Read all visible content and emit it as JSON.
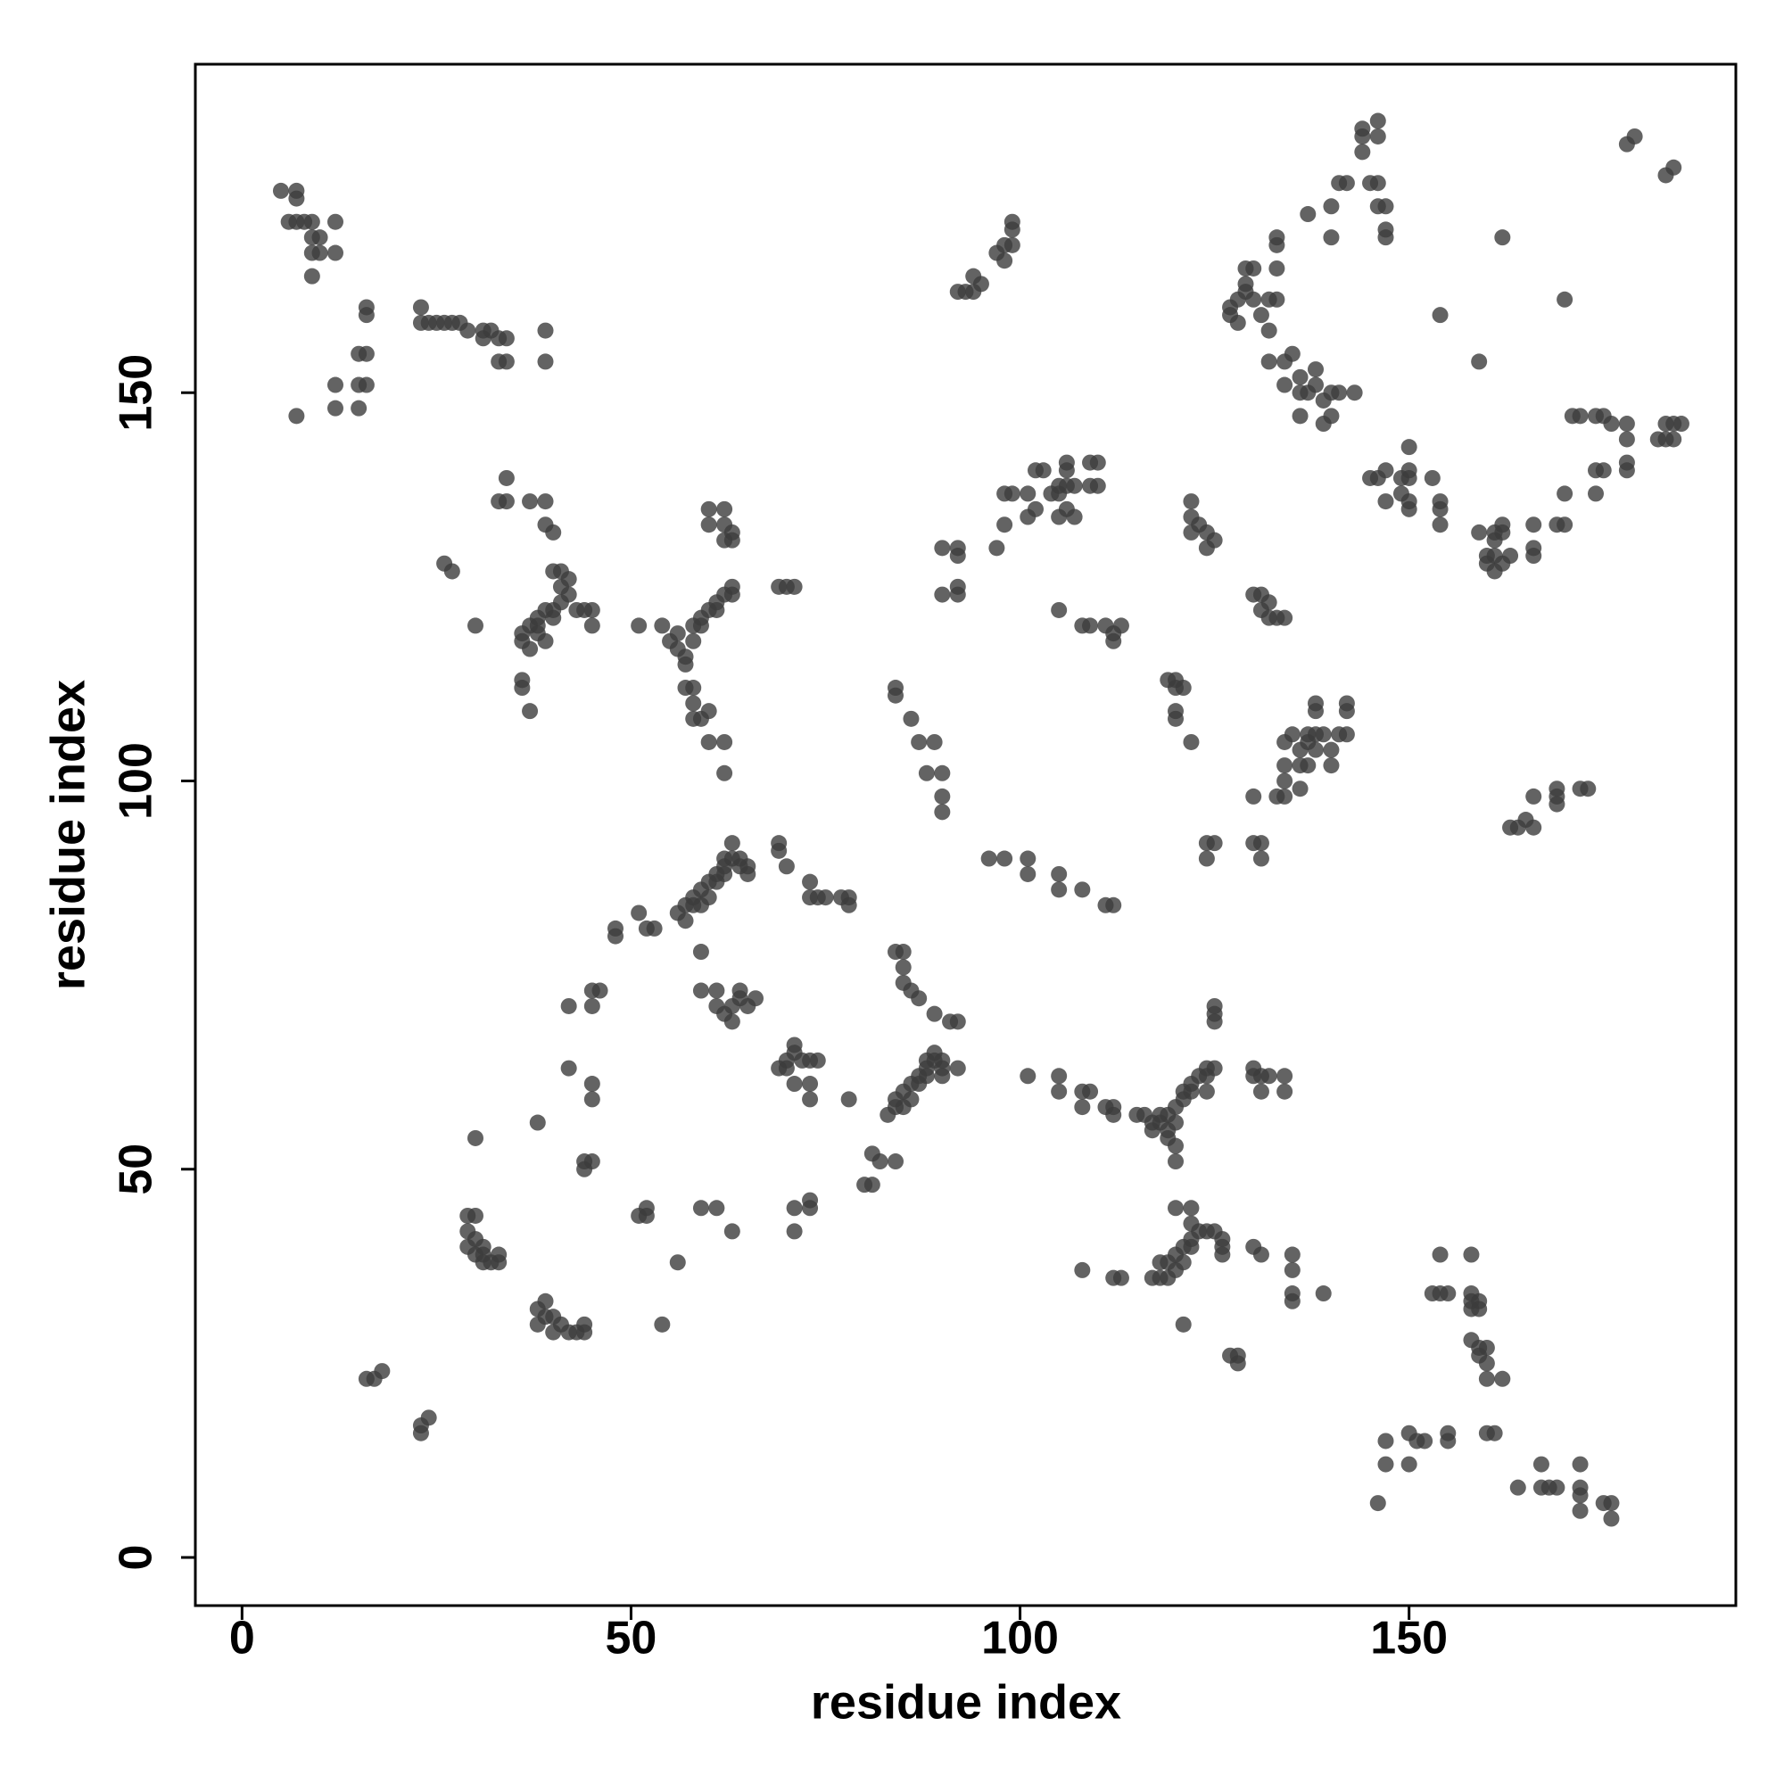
{
  "chart_data": {
    "type": "scatter",
    "xlabel": "residue index",
    "ylabel": "residue index",
    "color": "#3c3c3c",
    "xlim": [
      -6,
      192
    ],
    "ylim": [
      -6.2,
      192.3
    ],
    "xticks": [
      0,
      50,
      100,
      150
    ],
    "yticks": [
      0,
      50,
      100,
      150
    ],
    "x": [
      5,
      7,
      7,
      6,
      7,
      8,
      9,
      9,
      10,
      9,
      10,
      12,
      12,
      9,
      7,
      12,
      12,
      15,
      15,
      16,
      15,
      16,
      16,
      16,
      23,
      24,
      25,
      26,
      27,
      28,
      29,
      23,
      31,
      32,
      33,
      34,
      31,
      33,
      34,
      39,
      39,
      33,
      34,
      34,
      37,
      39,
      39,
      40,
      36,
      36,
      37,
      36,
      36,
      37,
      38,
      38,
      39,
      40,
      40,
      41,
      41,
      40,
      41,
      42,
      42,
      43,
      44,
      45,
      45,
      39,
      38,
      37,
      26,
      27,
      30,
      51,
      54,
      55,
      56,
      56,
      57,
      57,
      58,
      58,
      59,
      59,
      60,
      61,
      61,
      62,
      63,
      63,
      57,
      58,
      58,
      58,
      59,
      60,
      60,
      62,
      62,
      60,
      62,
      60,
      62,
      62,
      63,
      63,
      69,
      70,
      71,
      56,
      57,
      57,
      58,
      58,
      59,
      59,
      60,
      60,
      61,
      61,
      62,
      62,
      62,
      63,
      63,
      64,
      64,
      65,
      65,
      69,
      69,
      70,
      73,
      73,
      74,
      75,
      77,
      78,
      78,
      48,
      48,
      51,
      52,
      53,
      59,
      59,
      61,
      61,
      62,
      63,
      63,
      64,
      64,
      65,
      66,
      42,
      45,
      45,
      46,
      42,
      45,
      45,
      44,
      44,
      45,
      38,
      30,
      51,
      52,
      52,
      59,
      61,
      63,
      56,
      54,
      71,
      71,
      73,
      73,
      29,
      30,
      29,
      29,
      30,
      30,
      31,
      31,
      32,
      31,
      33,
      33,
      38,
      38,
      39,
      39,
      40,
      40,
      41,
      42,
      43,
      44,
      44,
      16,
      17,
      18,
      23,
      24,
      23,
      69,
      70,
      70,
      71,
      71,
      72,
      73,
      74,
      71,
      73,
      73,
      78,
      81,
      82,
      81,
      80,
      84,
      83,
      84,
      84,
      85,
      85,
      86,
      86,
      87,
      87,
      88,
      88,
      88,
      89,
      89,
      90,
      90,
      90,
      91,
      92,
      92,
      89,
      86,
      85,
      85,
      85,
      84,
      87,
      84,
      84,
      86,
      87,
      89,
      88,
      90,
      90,
      90,
      90,
      92,
      92,
      90,
      92,
      92,
      96,
      98,
      101,
      101,
      105,
      105,
      108,
      111,
      112,
      101,
      105,
      105,
      108,
      109,
      108,
      111,
      112,
      112,
      115,
      116,
      117,
      117,
      118,
      118,
      119,
      119,
      120,
      120,
      121,
      121,
      122,
      122,
      123,
      124,
      124,
      125,
      124,
      119,
      120,
      120,
      125,
      125,
      125,
      130,
      131,
      132,
      134,
      131,
      134,
      130,
      108,
      112,
      113,
      117,
      118,
      119,
      118,
      119,
      120,
      120,
      121,
      121,
      122,
      122,
      122,
      123,
      124,
      125,
      126,
      126,
      126,
      120,
      122,
      121,
      127,
      128,
      128,
      130,
      131,
      135,
      135,
      135,
      135,
      139,
      92,
      93,
      94,
      94,
      95,
      97,
      98,
      98,
      99,
      99,
      99,
      98,
      99,
      98,
      97,
      101,
      101,
      102,
      103,
      102,
      104,
      105,
      105,
      106,
      106,
      106,
      107,
      106,
      105,
      107,
      109,
      110,
      109,
      110,
      105,
      108,
      109,
      111,
      112,
      112,
      113,
      119,
      120,
      120,
      121,
      120,
      120,
      122,
      122,
      122,
      122,
      123,
      124,
      125,
      124,
      124,
      125,
      124,
      130,
      131,
      131,
      130,
      130,
      131,
      131,
      132,
      132,
      133,
      134,
      133,
      134,
      134,
      134,
      134,
      135,
      136,
      136,
      136,
      137,
      137,
      137,
      138,
      138,
      138,
      138,
      139,
      140,
      140,
      141,
      142,
      142,
      142,
      127,
      127,
      128,
      128,
      129,
      129,
      129,
      130,
      130,
      131,
      132,
      132,
      133,
      133,
      133,
      133,
      132,
      134,
      134,
      135,
      136,
      136,
      136,
      137,
      138,
      138,
      139,
      139,
      140,
      140,
      141,
      143,
      137,
      140,
      141,
      142,
      140,
      145,
      146,
      146,
      147,
      147,
      147,
      144,
      144,
      146,
      146,
      144,
      145,
      146,
      147,
      147,
      149,
      149,
      150,
      150,
      150,
      150,
      150,
      153,
      154,
      154,
      154,
      159,
      161,
      162,
      162,
      161,
      160,
      161,
      160,
      161,
      163,
      162,
      166,
      166,
      166,
      154,
      159,
      162,
      170,
      169,
      170,
      170,
      174,
      174,
      175,
      178,
      178,
      178,
      178,
      171,
      172,
      174,
      175,
      176,
      182,
      183,
      184,
      184,
      185,
      183,
      178,
      179,
      183,
      184,
      163,
      164,
      165,
      166,
      166,
      169,
      169,
      169,
      172,
      173,
      153,
      154,
      154,
      155,
      158,
      158,
      158,
      159,
      158,
      159,
      158,
      159,
      159,
      160,
      160,
      160,
      162,
      160,
      161,
      147,
      147,
      150,
      150,
      151,
      152,
      155,
      155,
      146,
      164,
      167,
      167,
      168,
      169,
      172,
      172,
      172,
      172,
      175,
      176,
      176
    ],
    "values": [
      176,
      176,
      175,
      172,
      172,
      172,
      172,
      170,
      170,
      168,
      168,
      172,
      168,
      165,
      147,
      148,
      151,
      148,
      151,
      151,
      155,
      155,
      160,
      161,
      159,
      159,
      159,
      159,
      159,
      159,
      158,
      161,
      158,
      158,
      157,
      157,
      157,
      154,
      154,
      158,
      154,
      136,
      136,
      139,
      136,
      136,
      133,
      132,
      113,
      112,
      109,
      118,
      119,
      120,
      120,
      121,
      122,
      122,
      121,
      123,
      125,
      127,
      127,
      124,
      126,
      122,
      122,
      122,
      120,
      118,
      119,
      117,
      128,
      127,
      120,
      120,
      120,
      118,
      117,
      119,
      116,
      115,
      118,
      120,
      120,
      121,
      122,
      122,
      123,
      124,
      124,
      125,
      112,
      112,
      110,
      108,
      108,
      109,
      105,
      105,
      101,
      133,
      133,
      135,
      135,
      131,
      131,
      132,
      125,
      125,
      125,
      83,
      82,
      84,
      84,
      85,
      86,
      84,
      85,
      87,
      87,
      88,
      88,
      89,
      90,
      90,
      92,
      89,
      90,
      88,
      89,
      92,
      91,
      89,
      87,
      85,
      85,
      85,
      85,
      85,
      84,
      81,
      80,
      83,
      81,
      81,
      78,
      73,
      73,
      71,
      70,
      69,
      71,
      73,
      72,
      71,
      72,
      71,
      71,
      73,
      73,
      63,
      61,
      59,
      51,
      50,
      51,
      56,
      54,
      44,
      44,
      45,
      45,
      45,
      42,
      38,
      30,
      45,
      42,
      45,
      46,
      44,
      44,
      42,
      40,
      41,
      39,
      40,
      39,
      38,
      38,
      39,
      38,
      32,
      30,
      33,
      31,
      31,
      29,
      30,
      29,
      29,
      30,
      29,
      23,
      23,
      24,
      17,
      18,
      16,
      63,
      63,
      64,
      65,
      66,
      64,
      64,
      64,
      61,
      61,
      59,
      59,
      52,
      51,
      48,
      48,
      51,
      57,
      58,
      59,
      58,
      60,
      59,
      61,
      61,
      62,
      62,
      63,
      64,
      64,
      65,
      63,
      62,
      64,
      69,
      69,
      63,
      70,
      73,
      74,
      76,
      78,
      78,
      72,
      112,
      111,
      108,
      105,
      105,
      101,
      101,
      98,
      96,
      130,
      130,
      129,
      124,
      124,
      125,
      90,
      90,
      90,
      88,
      88,
      86,
      86,
      84,
      84,
      62,
      62,
      60,
      60,
      60,
      58,
      58,
      58,
      57,
      57,
      57,
      56,
      55,
      57,
      56,
      55,
      57,
      58,
      56,
      59,
      60,
      60,
      61,
      62,
      62,
      63,
      63,
      60,
      54,
      51,
      53,
      70,
      69,
      71,
      62,
      62,
      62,
      62,
      60,
      60,
      63,
      37,
      36,
      36,
      36,
      36,
      36,
      38,
      38,
      37,
      39,
      40,
      38,
      40,
      41,
      43,
      42,
      42,
      42,
      41,
      40,
      39,
      45,
      45,
      30,
      26,
      26,
      25,
      40,
      39,
      39,
      37,
      34,
      33,
      34,
      163,
      163,
      163,
      165,
      164,
      168,
      169,
      167,
      169,
      171,
      172,
      137,
      137,
      133,
      130,
      134,
      137,
      140,
      140,
      135,
      137,
      137,
      138,
      138,
      140,
      141,
      138,
      135,
      134,
      134,
      138,
      138,
      141,
      141,
      122,
      120,
      120,
      120,
      118,
      119,
      120,
      113,
      113,
      112,
      112,
      109,
      108,
      105,
      136,
      134,
      132,
      133,
      132,
      131,
      130,
      92,
      92,
      90,
      92,
      92,
      90,
      98,
      124,
      124,
      122,
      123,
      121,
      121,
      121,
      98,
      98,
      100,
      102,
      105,
      106,
      104,
      102,
      99,
      102,
      105,
      106,
      106,
      104,
      109,
      110,
      106,
      104,
      102,
      106,
      106,
      109,
      110,
      161,
      160,
      159,
      162,
      163,
      164,
      166,
      166,
      162,
      160,
      162,
      158,
      162,
      166,
      169,
      170,
      154,
      154,
      151,
      155,
      150,
      152,
      147,
      150,
      151,
      153,
      146,
      149,
      150,
      147,
      150,
      150,
      173,
      174,
      177,
      177,
      170,
      177,
      177,
      174,
      174,
      171,
      170,
      183,
      181,
      183,
      185,
      184,
      139,
      139,
      140,
      136,
      139,
      137,
      140,
      139,
      143,
      136,
      135,
      139,
      136,
      135,
      133,
      132,
      132,
      133,
      132,
      131,
      129,
      129,
      128,
      127,
      129,
      128,
      129,
      130,
      133,
      160,
      154,
      170,
      162,
      133,
      133,
      137,
      137,
      140,
      140,
      140,
      141,
      144,
      146,
      147,
      147,
      147,
      147,
      146,
      144,
      144,
      144,
      146,
      146,
      146,
      182,
      183,
      178,
      179,
      94,
      94,
      95,
      94,
      98,
      98,
      99,
      97,
      99,
      99,
      34,
      34,
      39,
      34,
      39,
      34,
      33,
      33,
      32,
      32,
      28,
      27,
      26,
      27,
      25,
      23,
      23,
      16,
      16,
      15,
      12,
      16,
      12,
      15,
      15,
      16,
      15,
      7,
      9,
      9,
      12,
      9,
      9,
      12,
      9,
      8,
      6,
      7,
      7,
      5
    ]
  }
}
